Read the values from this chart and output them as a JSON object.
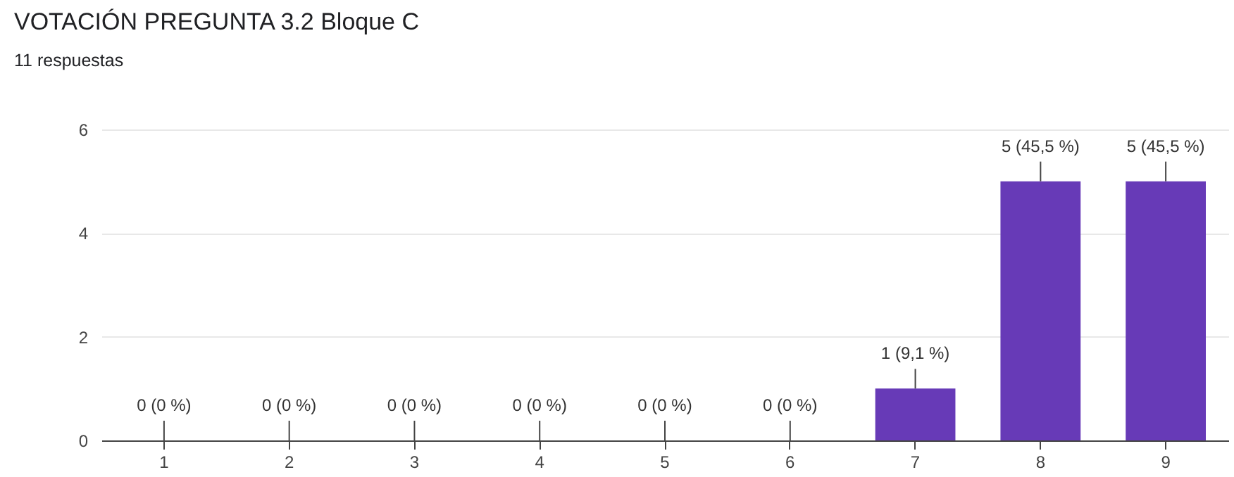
{
  "chart_data": {
    "type": "bar",
    "title": "VOTACIÓN PREGUNTA 3.2 Bloque C",
    "subtitle": "11 respuestas",
    "categories": [
      "1",
      "2",
      "3",
      "4",
      "5",
      "6",
      "7",
      "8",
      "9"
    ],
    "values": [
      0,
      0,
      0,
      0,
      0,
      0,
      1,
      5,
      5
    ],
    "value_labels": [
      "0 (0 %)",
      "0 (0 %)",
      "0 (0 %)",
      "0 (0 %)",
      "0 (0 %)",
      "0 (0 %)",
      "1 (9,1 %)",
      "5 (45,5 %)",
      "5 (45,5 %)"
    ],
    "color": "#673ab7",
    "ylim": [
      0,
      6
    ],
    "yticks": [
      0,
      2,
      4,
      6
    ],
    "grid": "y"
  }
}
